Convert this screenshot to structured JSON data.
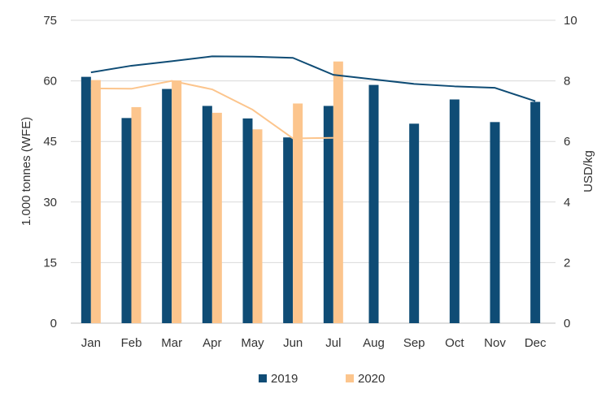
{
  "colors": {
    "series_2019": "#0f4c75",
    "series_2020": "#fcc58d",
    "grid": "#d9d9d9",
    "frame": "#bfbfbf",
    "text": "#333333"
  },
  "chart_data": {
    "type": "bar",
    "categories": [
      "Jan",
      "Feb",
      "Mar",
      "Apr",
      "May",
      "Jun",
      "Jul",
      "Aug",
      "Sep",
      "Oct",
      "Nov",
      "Dec"
    ],
    "ylabel": "1.000 tonnes (WFE)",
    "y2label": "USD/kg",
    "ylim": [
      0,
      75
    ],
    "y2lim": [
      0,
      10
    ],
    "yticks": [
      0,
      15,
      30,
      45,
      60,
      75
    ],
    "y2ticks": [
      0,
      2,
      4,
      6,
      8,
      10
    ],
    "grid": true,
    "legend_position": "bottom",
    "bars": [
      {
        "name": "2019",
        "values": [
          61,
          50.8,
          58,
          53.8,
          50.7,
          46,
          53.8,
          59,
          49.4,
          55.4,
          49.8,
          54.8
        ]
      },
      {
        "name": "2020",
        "values": [
          60.2,
          53.5,
          60.1,
          52.1,
          48,
          54.4,
          64.8
        ]
      }
    ],
    "lines": [
      {
        "series": "2019",
        "axis": "y2",
        "values": [
          8.28,
          8.5,
          8.65,
          8.81,
          8.8,
          8.76,
          8.2,
          8.05,
          7.9,
          7.82,
          7.77,
          7.33
        ]
      },
      {
        "series": "2020",
        "axis": "y2",
        "values": [
          7.75,
          7.74,
          8.0,
          7.72,
          7.05,
          6.1,
          6.12
        ]
      }
    ]
  }
}
